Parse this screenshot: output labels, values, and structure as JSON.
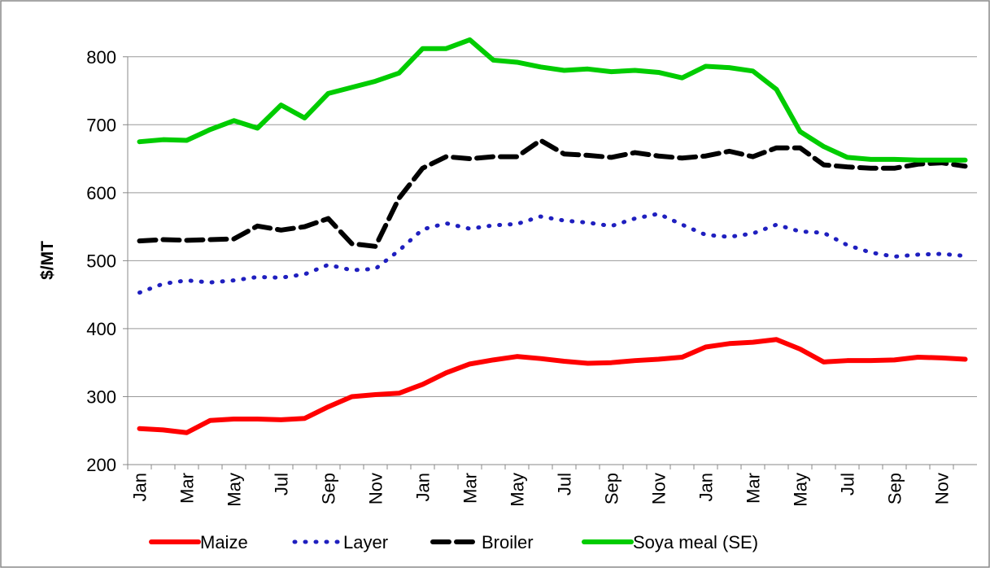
{
  "chart_data": {
    "type": "line",
    "y_label": "$/MT",
    "categories": [
      "Jan",
      null,
      "Mar",
      null,
      "May",
      null,
      "Jul",
      null,
      "Sep",
      null,
      "Nov",
      null,
      "Jan",
      null,
      "Mar",
      null,
      "May",
      null,
      "Jul",
      null,
      "Sep",
      null,
      "Nov",
      null,
      "Jan",
      null,
      "Mar",
      null,
      "May",
      null,
      "Jul",
      null,
      "Sep",
      null,
      "Nov",
      null
    ],
    "series": [
      {
        "name": "Maize",
        "color": "#ff0000",
        "style": "solid",
        "values": [
          253,
          251,
          247,
          265,
          267,
          267,
          266,
          268,
          285,
          300,
          303,
          305,
          318,
          335,
          348,
          354,
          359,
          356,
          352,
          349,
          350,
          353,
          355,
          358,
          373,
          378,
          380,
          384,
          370,
          351,
          353,
          353,
          354,
          358,
          357,
          355
        ]
      },
      {
        "name": "Layer",
        "color": "#1f1fbf",
        "style": "dotted",
        "values": [
          453,
          466,
          471,
          468,
          471,
          476,
          475,
          480,
          494,
          486,
          488,
          515,
          546,
          555,
          547,
          552,
          554,
          565,
          559,
          556,
          551,
          562,
          569,
          553,
          538,
          535,
          540,
          553,
          543,
          541,
          523,
          512,
          506,
          509,
          510,
          507
        ]
      },
      {
        "name": "Broiler",
        "color": "#000000",
        "style": "dashed",
        "values": [
          529,
          531,
          530,
          531,
          532,
          551,
          545,
          550,
          562,
          525,
          521,
          592,
          636,
          653,
          650,
          653,
          653,
          677,
          657,
          655,
          652,
          659,
          654,
          651,
          654,
          661,
          653,
          666,
          666,
          641,
          638,
          636,
          636,
          642,
          644,
          639
        ]
      },
      {
        "name": "Soya meal (SE)",
        "color": "#00cc00",
        "style": "solid",
        "values": [
          675,
          678,
          677,
          693,
          706,
          695,
          729,
          710,
          746,
          755,
          764,
          776,
          812,
          812,
          825,
          795,
          792,
          785,
          780,
          782,
          778,
          780,
          777,
          769,
          786,
          784,
          779,
          752,
          690,
          668,
          652,
          649,
          649,
          648,
          648,
          648
        ]
      }
    ],
    "ylim": [
      200,
      850
    ],
    "yticks": [
      200,
      300,
      400,
      500,
      600,
      700,
      800
    ],
    "grid": true,
    "legend": "bottom"
  }
}
